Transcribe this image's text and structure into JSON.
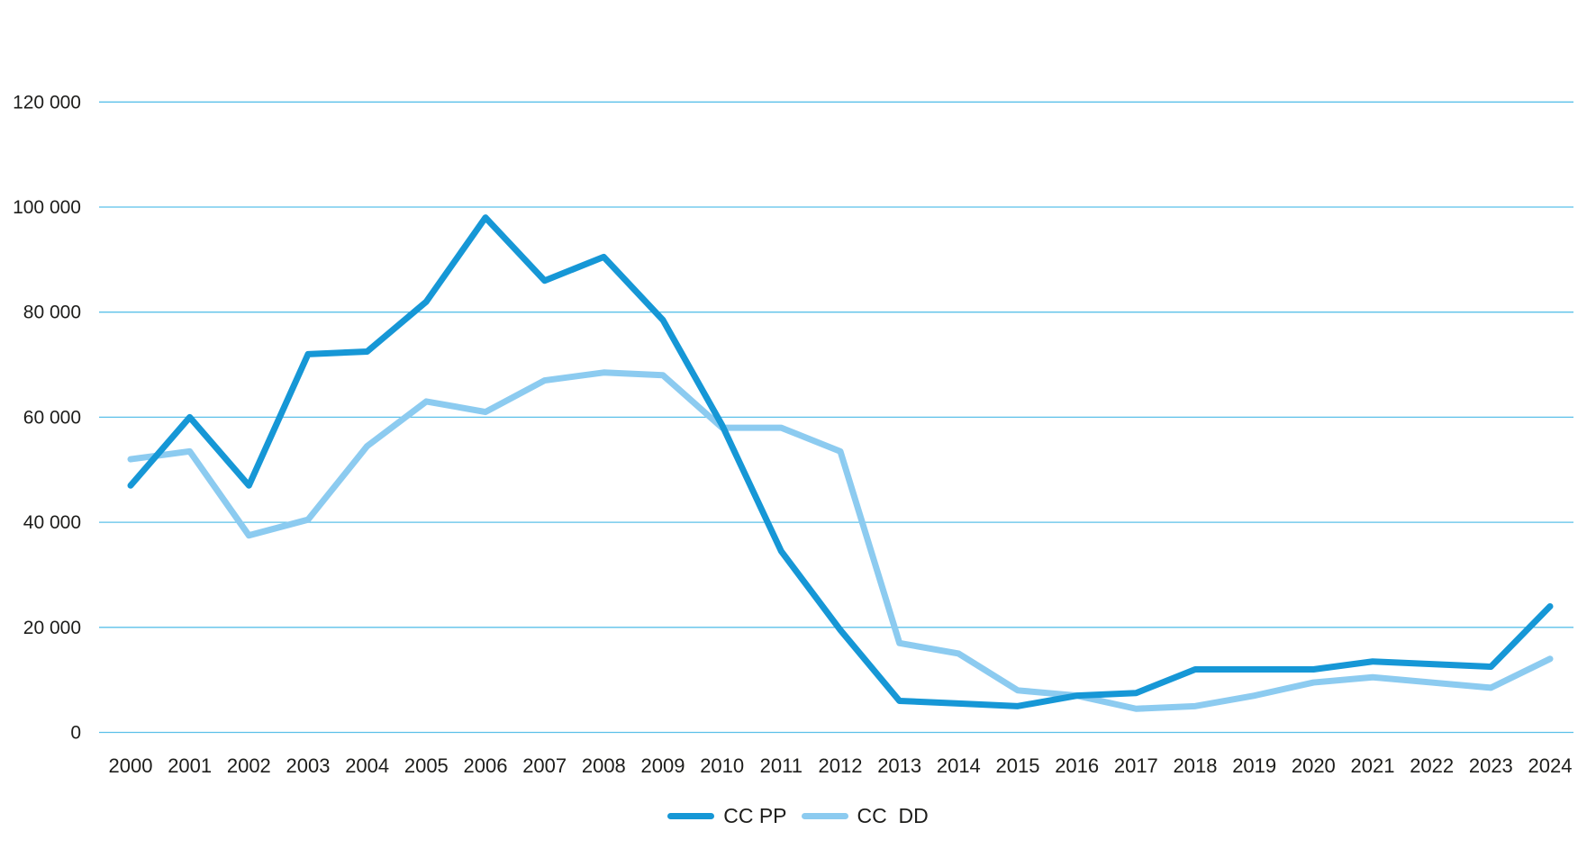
{
  "chart_data": {
    "type": "line",
    "x": [
      2000,
      2001,
      2002,
      2003,
      2004,
      2005,
      2006,
      2007,
      2008,
      2009,
      2010,
      2011,
      2012,
      2013,
      2014,
      2015,
      2016,
      2017,
      2018,
      2019,
      2020,
      2021,
      2022,
      2023,
      2024
    ],
    "series": [
      {
        "name": "CC PP",
        "color": "#1697d6",
        "values": [
          47000,
          60000,
          47000,
          72000,
          72500,
          82000,
          98000,
          86000,
          90500,
          78500,
          58500,
          34500,
          19500,
          6000,
          5500,
          5000,
          7000,
          7500,
          12000,
          12000,
          12000,
          13500,
          13000,
          12500,
          24000
        ]
      },
      {
        "name": "CC  DD",
        "color": "#8ccbf0",
        "values": [
          52000,
          53500,
          37500,
          40500,
          54500,
          63000,
          61000,
          67000,
          68500,
          68000,
          58000,
          58000,
          53500,
          17000,
          15000,
          8000,
          7000,
          4500,
          5000,
          7000,
          9500,
          10500,
          9500,
          8500,
          14000
        ]
      }
    ],
    "ylim": [
      0,
      120000
    ],
    "ytick_interval": 20000,
    "ytick_labels": [
      "0",
      "20 000",
      "40 000",
      "60 000",
      "80 000",
      "100 000",
      "120 000"
    ],
    "grid": "horizontal",
    "gridline_color": "#5bc0e9",
    "text_color": "#1d1d1b",
    "legend_position": "bottom-center",
    "background": "#ffffff"
  }
}
